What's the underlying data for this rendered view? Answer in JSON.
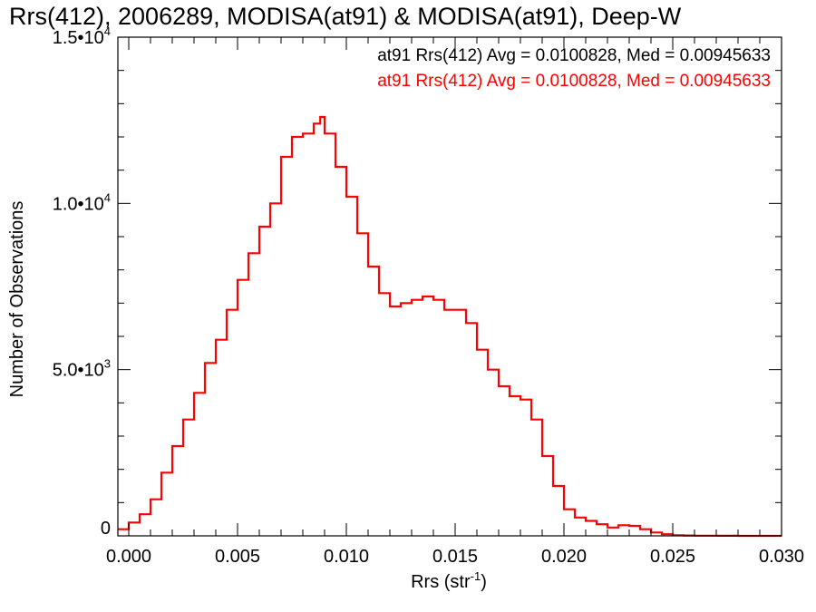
{
  "chart_data": {
    "type": "histogram",
    "title": "Rrs(412), 2006289, MODISA(at91) & MODISA(at91), Deep-W",
    "xlabel": {
      "text": "Rrs (str",
      "sup": "-1",
      "close": ")"
    },
    "ylabel": "Number of Observations",
    "xlim": [
      -0.0005,
      0.03
    ],
    "ylim": [
      0,
      15000
    ],
    "x_ticks": [
      0.0,
      0.005,
      0.01,
      0.015,
      0.02,
      0.025,
      0.03
    ],
    "x_tick_labels": [
      "0.000",
      "0.005",
      "0.010",
      "0.015",
      "0.020",
      "0.025",
      "0.030"
    ],
    "y_ticks": [
      0,
      5000,
      10000,
      15000
    ],
    "y_tick_labels": [
      {
        "base": "0",
        "exp": ""
      },
      {
        "base": "5.0•10",
        "exp": "3"
      },
      {
        "base": "1.0•10",
        "exp": "4"
      },
      {
        "base": "1.5•10",
        "exp": "4"
      }
    ],
    "legend": [
      {
        "text": "at91 Rrs(412) Avg = 0.0100828, Med = 0.00945633",
        "color": "#000000"
      },
      {
        "text": "at91 Rrs(412) Avg = 0.0100828, Med = 0.00945633",
        "color": "#ff0000"
      }
    ],
    "legend_position": "top-right",
    "grid": false,
    "series": [
      {
        "color": "#ff0000",
        "x": [
          -0.0005,
          0.0,
          0.0005,
          0.001,
          0.0015,
          0.002,
          0.0025,
          0.003,
          0.0035,
          0.004,
          0.0045,
          0.005,
          0.0055,
          0.006,
          0.0065,
          0.007,
          0.0075,
          0.008,
          0.0085,
          0.0088,
          0.009,
          0.0095,
          0.01,
          0.0105,
          0.011,
          0.0115,
          0.012,
          0.0125,
          0.013,
          0.0135,
          0.014,
          0.0145,
          0.015,
          0.0155,
          0.016,
          0.0165,
          0.017,
          0.0175,
          0.018,
          0.0185,
          0.019,
          0.0195,
          0.02,
          0.0205,
          0.021,
          0.0215,
          0.022,
          0.0225,
          0.023,
          0.0235,
          0.024,
          0.0245,
          0.025,
          0.0255,
          0.026,
          0.027,
          0.028,
          0.029,
          0.03
        ],
        "y": [
          200,
          400,
          650,
          1100,
          1900,
          2700,
          3500,
          4300,
          5200,
          5900,
          6800,
          7700,
          8500,
          9300,
          10000,
          11400,
          12000,
          12100,
          12400,
          12600,
          12100,
          11100,
          10200,
          9100,
          8100,
          7300,
          6900,
          7000,
          7100,
          7200,
          7100,
          6800,
          6800,
          6400,
          5600,
          5000,
          4500,
          4200,
          4100,
          3500,
          2400,
          1500,
          800,
          550,
          450,
          350,
          250,
          320,
          300,
          200,
          100,
          50,
          20,
          10,
          5,
          2,
          1,
          0,
          0
        ]
      }
    ]
  }
}
